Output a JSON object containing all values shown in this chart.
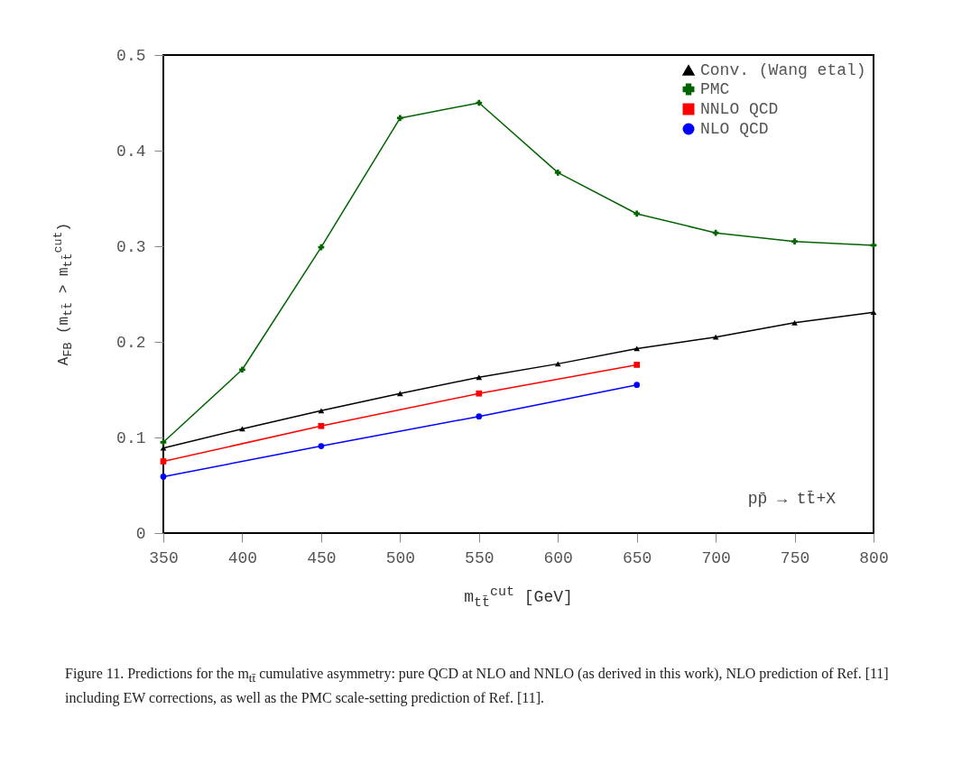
{
  "chart_data": {
    "type": "line",
    "xlabel": "m$_{tt̄}$$^{cut}$ [GeV]",
    "ylabel": "A$_{FB}$ (m$_{tt̄}$ > m$_{tt̄}$$^{cut}$)",
    "xlim": [
      350,
      800
    ],
    "xticks": [
      350,
      400,
      450,
      500,
      550,
      600,
      650,
      700,
      750,
      800
    ],
    "ylim": [
      0,
      0.5
    ],
    "yticks": [
      0,
      0.1,
      0.2,
      0.3,
      0.4,
      0.5
    ],
    "grid": false,
    "legend": "top right",
    "series": [
      {
        "name": "Conv. (Wang etal)",
        "color": "#000000",
        "marker": "triangle",
        "x": [
          350,
          400,
          450,
          500,
          550,
          600,
          650,
          700,
          750,
          800
        ],
        "values": [
          0.089,
          0.109,
          0.128,
          0.146,
          0.163,
          0.177,
          0.193,
          0.205,
          0.22,
          0.231
        ]
      },
      {
        "name": "PMC",
        "color": "#006400",
        "marker": "cross",
        "x": [
          350,
          400,
          450,
          500,
          550,
          600,
          650,
          700,
          750,
          800
        ],
        "values": [
          0.095,
          0.171,
          0.299,
          0.434,
          0.45,
          0.377,
          0.334,
          0.314,
          0.305,
          0.301
        ]
      },
      {
        "name": "NNLO QCD",
        "color": "#ff0000",
        "marker": "square",
        "x": [
          350,
          450,
          550,
          650
        ],
        "values": [
          0.075,
          0.112,
          0.146,
          0.176
        ]
      },
      {
        "name": "NLO QCD",
        "color": "#0000ff",
        "marker": "circle",
        "x": [
          350,
          450,
          550,
          650
        ],
        "values": [
          0.059,
          0.091,
          0.122,
          0.155
        ]
      }
    ],
    "annotations": [
      "pp̄ → tt̄+X",
      "Figure 11.    Predictions for the m$_{tt̄}$ cumulative asymmetry: pure QCD at NLO and NNLO (as derived in this work), NLO prediction of Ref. [11] including EW corrections, as well as the PMC scale-setting prediction of Ref. [11]."
    ]
  }
}
